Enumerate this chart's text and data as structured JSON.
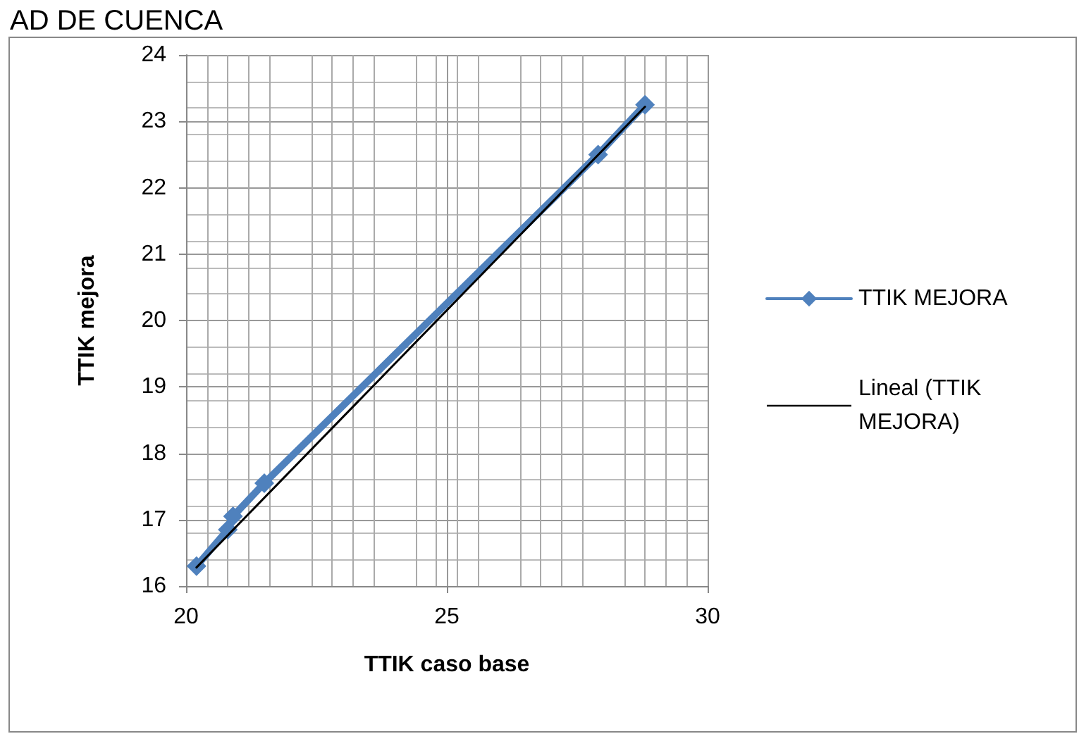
{
  "chart_data": {
    "type": "line",
    "title": "AD DE CUENCA",
    "xlabel": "TTIK caso base",
    "ylabel": "TTIK mejora",
    "xlim": [
      20,
      30
    ],
    "xticks": [
      20,
      25,
      30
    ],
    "ylim": [
      16,
      24
    ],
    "yticks": [
      16,
      17,
      18,
      19,
      20,
      21,
      22,
      23,
      24
    ],
    "grid": true,
    "legend": "right",
    "marker": "diamond",
    "series": [
      {
        "name": "TTIK MEJORA",
        "color": "#4f81bd",
        "x": [
          20.2,
          20.8,
          20.9,
          21.5,
          27.9,
          28.8
        ],
        "values": [
          16.3,
          16.85,
          17.05,
          17.55,
          22.5,
          23.25
        ]
      },
      {
        "name": "Lineal (TTIK MEJORA)",
        "marker": "none",
        "color": "#000000",
        "x": [
          20.2,
          28.8
        ],
        "values": [
          16.28,
          23.22
        ]
      }
    ]
  }
}
